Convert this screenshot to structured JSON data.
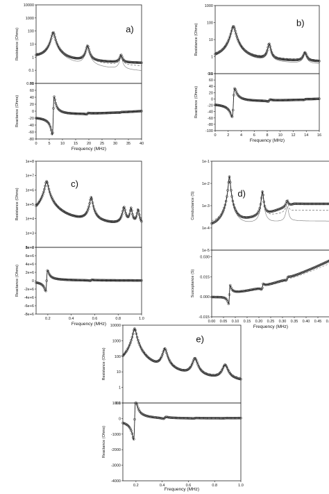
{
  "chart_data": [
    {
      "panel_label": "a)",
      "type": "line",
      "xlabel": "Frequency (MHz)",
      "xlim": [
        0,
        40
      ],
      "xticks": [
        "0",
        "5",
        "10",
        "15",
        "20",
        "25",
        "30",
        "35",
        "40"
      ],
      "top": {
        "ylabel": "Resistance (Ohms)",
        "yscale": "log",
        "ylim": [
          0.01,
          10000
        ],
        "yticks": [
          "0.01",
          "0.1",
          "1",
          "10",
          "100",
          "1000",
          "10000"
        ],
        "peaks": [
          {
            "x": 6.5,
            "y": 80,
            "w": 0.55
          },
          {
            "x": 19.5,
            "y": 7,
            "w": 0.5
          },
          {
            "x": 32.2,
            "y": 1.1,
            "w": 0.45
          }
        ],
        "baseline": [
          [
            0.5,
            0.9
          ],
          [
            10,
            0.45
          ],
          [
            40,
            0.35
          ]
        ],
        "model_baseline": [
          [
            0.5,
            0.8
          ],
          [
            10,
            0.15
          ],
          [
            40,
            0.07
          ]
        ]
      },
      "bottom": {
        "ylabel": "Reactance (Ohms)",
        "ylim": [
          -80,
          80
        ],
        "yticks": [
          "-80",
          "-60",
          "-40",
          "-20",
          "0",
          "20",
          "40",
          "60",
          "80"
        ],
        "resonances": [
          {
            "x": 6.5,
            "a": 55,
            "w": 0.35
          },
          {
            "x": 19.5,
            "a": 2,
            "w": 0.3
          },
          {
            "x": 32.2,
            "a": 0.6,
            "w": 0.3
          }
        ],
        "offset_start": -14,
        "offset_end": -1
      }
    },
    {
      "panel_label": "b)",
      "type": "line",
      "xlabel": "Frequency (MHz)",
      "xlim": [
        0,
        16
      ],
      "xticks": [
        "0",
        "2",
        "4",
        "6",
        "8",
        "10",
        "12",
        "14",
        "16"
      ],
      "top": {
        "ylabel": "Resistance (Ohms)",
        "yscale": "log",
        "ylim": [
          0.1,
          1000
        ],
        "yticks": [
          "0.1",
          "1",
          "10",
          "100",
          "1000"
        ],
        "peaks": [
          {
            "x": 2.8,
            "y": 60,
            "w": 0.3
          },
          {
            "x": 8.3,
            "y": 5,
            "w": 0.2
          },
          {
            "x": 13.8,
            "y": 1.2,
            "w": 0.25
          }
        ],
        "baseline": [
          [
            0.8,
            0.7
          ],
          [
            5,
            0.6
          ],
          [
            16,
            0.5
          ]
        ],
        "model_baseline": [
          [
            0.8,
            0.6
          ],
          [
            5,
            0.45
          ],
          [
            16,
            0.35
          ]
        ]
      },
      "bottom": {
        "ylabel": "Reactance (Ohms)",
        "ylim": [
          -100,
          80
        ],
        "yticks": [
          "-100",
          "-80",
          "-60",
          "-40",
          "-20",
          "0",
          "20",
          "40",
          "60",
          "80"
        ],
        "resonances": [
          {
            "x": 2.8,
            "a": 45,
            "w": 0.2
          },
          {
            "x": 8.3,
            "a": 3,
            "w": 0.15
          },
          {
            "x": 13.8,
            "a": 1,
            "w": 0.2
          }
        ],
        "offset_start": -12,
        "offset_end": -1
      }
    },
    {
      "panel_label": "c)",
      "type": "line",
      "xlabel": "Frequency (MHz)",
      "xlim": [
        0.1,
        1.0
      ],
      "xticks": [
        "0.2",
        "0.4",
        "0.6",
        "0.8",
        "1.0"
      ],
      "top": {
        "ylabel": "Resistance (Ohms)",
        "yscale": "log",
        "ylim": [
          100,
          100000000
        ],
        "yticks": [
          "1e+2",
          "1e+3",
          "1e+4",
          "1e+5",
          "1e+6",
          "1e+7",
          "1e+8"
        ],
        "peaks": [
          {
            "x": 0.19,
            "y": 4000000,
            "w": 0.012
          },
          {
            "x": 0.57,
            "y": 300000,
            "w": 0.01
          },
          {
            "x": 0.85,
            "y": 60000,
            "w": 0.01
          },
          {
            "x": 0.91,
            "y": 50000,
            "w": 0.008
          },
          {
            "x": 0.97,
            "y": 40000,
            "w": 0.008
          }
        ],
        "baseline": [
          [
            0.1,
            8000
          ],
          [
            0.35,
            4000
          ],
          [
            1.0,
            2000
          ]
        ],
        "model_baseline": [
          [
            0.1,
            5000
          ],
          [
            0.35,
            3000
          ],
          [
            1.0,
            1500
          ]
        ]
      },
      "bottom": {
        "ylabel": "Reactance (Ohms)",
        "ylim": [
          -8000000,
          8000000
        ],
        "yticks": [
          "-8e+6",
          "-6e+6",
          "-4e+6",
          "-2e+6",
          "0",
          "2e+6",
          "4e+6",
          "6e+6",
          "8e+6"
        ],
        "resonances": [
          {
            "x": 0.19,
            "a": 2500000,
            "w": 0.008
          },
          {
            "x": 0.57,
            "a": 120000,
            "w": 0.006
          }
        ],
        "offset_start": 0,
        "offset_end": 0
      }
    },
    {
      "panel_label": "d)",
      "type": "line",
      "xlabel": "Frequency (MHz)",
      "xlim": [
        0,
        0.5
      ],
      "xticks": [
        "0.00",
        "0.05",
        "0.10",
        "0.15",
        "0.20",
        "0.25",
        "0.30",
        "0.35",
        "0.40",
        "0.45",
        "0.50"
      ],
      "top": {
        "ylabel": "Conductance (S)",
        "yscale": "log",
        "ylim": [
          1e-05,
          0.1
        ],
        "yticks": [
          "1e-5",
          "1e-4",
          "1e-3",
          "1e-2",
          "1e-1"
        ],
        "peaks": [
          {
            "x": 0.075,
            "y": 0.02,
            "w": 0.004
          },
          {
            "x": 0.215,
            "y": 0.004,
            "w": 0.004
          },
          {
            "x": 0.32,
            "y": 0.0008,
            "w": 0.005
          }
        ],
        "baseline": [
          [
            0.02,
            0.0001
          ],
          [
            0.2,
            0.0003
          ],
          [
            0.35,
            0.0012
          ]
        ],
        "model_baseline": [
          [
            0.02,
            9e-05
          ],
          [
            0.2,
            0.00015
          ],
          [
            0.35,
            0.0002
          ]
        ]
      },
      "bottom": {
        "ylabel": "Susceptance (S)",
        "ylim": [
          -0.015,
          0.035
        ],
        "yticks": [
          "-0.015",
          "0.000",
          "0.015",
          "0.030"
        ],
        "resonances": [
          {
            "x": 0.075,
            "a": 0.007,
            "w": 0.003
          },
          {
            "x": 0.215,
            "a": 0.002,
            "w": 0.003
          },
          {
            "x": 0.32,
            "a": 0.001,
            "w": 0.004
          }
        ],
        "offset_start": 0.0005,
        "offset_end": 0.027
      }
    },
    {
      "panel_label": "e)",
      "type": "line",
      "xlabel": "Frequency (MHz)",
      "xlim": [
        0.1,
        1.0
      ],
      "xticks": [
        "0.2",
        "0.4",
        "0.6",
        "0.8",
        "1.0"
      ],
      "top": {
        "ylabel": "Resistance (Ohms)",
        "yscale": "log",
        "ylim": [
          0.1,
          10000
        ],
        "yticks": [
          "0.1",
          "1",
          "10",
          "100",
          "1000",
          "10000"
        ],
        "peaks": [
          {
            "x": 0.19,
            "y": 6000,
            "w": 0.012
          },
          {
            "x": 0.42,
            "y": 300,
            "w": 0.014
          },
          {
            "x": 0.65,
            "y": 70,
            "w": 0.016
          },
          {
            "x": 0.88,
            "y": 25,
            "w": 0.018
          }
        ],
        "baseline": [
          [
            0.1,
            1.2
          ],
          [
            0.5,
            1.2
          ],
          [
            1.0,
            1.2
          ]
        ],
        "model_baseline": [
          [
            0.1,
            1.2
          ],
          [
            0.5,
            1.2
          ],
          [
            1.0,
            1.2
          ]
        ]
      },
      "bottom": {
        "ylabel": "Reactance (Ohms)",
        "ylim": [
          -4000,
          1000
        ],
        "yticks": [
          "-4000",
          "-3000",
          "-2000",
          "-1000",
          "0",
          "1000"
        ],
        "resonances": [
          {
            "x": 0.19,
            "a": 1300,
            "w": 0.008
          },
          {
            "x": 0.42,
            "a": 60,
            "w": 0.01
          },
          {
            "x": 0.65,
            "a": 15,
            "w": 0.012
          },
          {
            "x": 0.88,
            "a": 6,
            "w": 0.012
          }
        ],
        "offset_start": -50,
        "offset_end": 0
      }
    }
  ]
}
